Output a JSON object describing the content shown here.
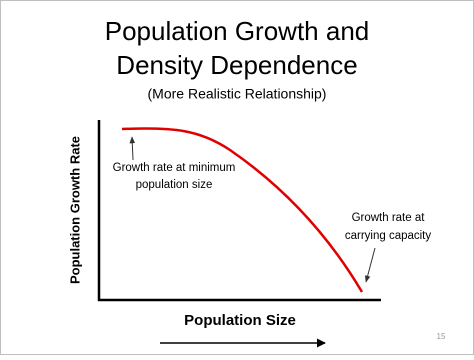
{
  "header": {
    "title_lines": [
      "Population Growth and",
      "Density Dependence"
    ],
    "subtitle": "(More Realistic Relationship)"
  },
  "graph": {
    "y_axis_label": "Population Growth Rate",
    "x_axis_label": "Population Size",
    "annotations": [
      {
        "lines": [
          "Growth rate at minimum",
          "population size"
        ]
      },
      {
        "lines": [
          "Growth rate at",
          "carrying capacity"
        ]
      }
    ]
  },
  "footer": {
    "page_number": "15"
  }
}
